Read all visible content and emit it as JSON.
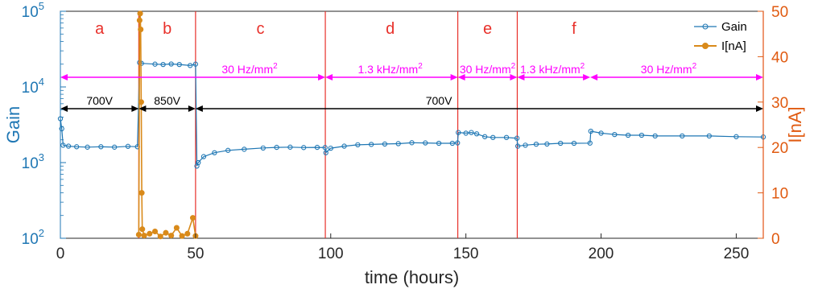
{
  "colors": {
    "gain": "#1f77b4",
    "current": "#d98a1a",
    "right_axis": "#e05a10",
    "region_line": "#e8302a",
    "region_label": "#e8302a",
    "rate_arrow": "#ff00ff",
    "voltage_arrow": "#000000"
  },
  "chart_data": {
    "type": "line",
    "xlabel": "time (hours)",
    "ylabel_left": "Gain",
    "ylabel_right": "I[nA]",
    "xlim": [
      0,
      260
    ],
    "ylim_left": [
      100,
      100000
    ],
    "ylim_right": [
      0,
      50
    ],
    "y_left_scale": "log",
    "x_ticks": [
      "0",
      "50",
      "100",
      "150",
      "200",
      "250"
    ],
    "x_tick_values": [
      0,
      50,
      100,
      150,
      200,
      250
    ],
    "y_left_ticks": [
      {
        "base": "10",
        "exp": "2",
        "value": 100
      },
      {
        "base": "10",
        "exp": "3",
        "value": 1000
      },
      {
        "base": "10",
        "exp": "4",
        "value": 10000
      },
      {
        "base": "10",
        "exp": "5",
        "value": 100000
      }
    ],
    "y_right_ticks": [
      "0",
      "10",
      "20",
      "30",
      "40",
      "50"
    ],
    "y_right_tick_values": [
      0,
      10,
      20,
      30,
      40,
      50
    ],
    "legend_position": "top-right",
    "grid": false,
    "region_boundaries": [
      29,
      50,
      98,
      147,
      169,
      260
    ],
    "regions": [
      {
        "label": "a",
        "x": 14.5
      },
      {
        "label": "b",
        "x": 39.5
      },
      {
        "label": "c",
        "x": 74
      },
      {
        "label": "d",
        "x": 122
      },
      {
        "label": "e",
        "x": 158
      },
      {
        "label": "f",
        "x": 190
      }
    ],
    "rate_annotations": [
      {
        "label": "30 Hz/mm",
        "sup": "2",
        "x1": 0,
        "x2": 98,
        "label_x": 70
      },
      {
        "label": "1.3 kHz/mm",
        "sup": "2",
        "x1": 98,
        "x2": 147,
        "label_x": 122
      },
      {
        "label": "30 Hz/mm",
        "sup": "2",
        "x1": 147,
        "x2": 169,
        "label_x": 158
      },
      {
        "label": "1.3 kHz/mm",
        "sup": "2",
        "x1": 169,
        "x2": 196,
        "label_x": 182
      },
      {
        "label": "30 Hz/mm",
        "sup": "2",
        "x1": 196,
        "x2": 260,
        "label_x": 225
      }
    ],
    "voltage_annotations": [
      {
        "label": "700V",
        "x1": 0,
        "x2": 29,
        "label_x": 14.5
      },
      {
        "label": "850V",
        "x1": 29,
        "x2": 50,
        "label_x": 39.5
      },
      {
        "label": "700V",
        "x1": 50,
        "x2": 260,
        "label_x": 140
      }
    ],
    "series": [
      {
        "name": "Gain",
        "axis": "left",
        "marker": "open-circle",
        "points": [
          [
            0.0,
            3800
          ],
          [
            0.5,
            2800
          ],
          [
            1.0,
            1700
          ],
          [
            3,
            1650
          ],
          [
            6,
            1620
          ],
          [
            10,
            1600
          ],
          [
            15,
            1620
          ],
          [
            20,
            1600
          ],
          [
            25,
            1640
          ],
          [
            28.5,
            1620
          ],
          [
            29.3,
            21000
          ],
          [
            30,
            20500
          ],
          [
            35,
            20000
          ],
          [
            38,
            19800
          ],
          [
            41,
            20100
          ],
          [
            44,
            19800
          ],
          [
            48,
            19200
          ],
          [
            50,
            20000
          ],
          [
            50.5,
            900
          ],
          [
            51,
            1000
          ],
          [
            53,
            1200
          ],
          [
            57,
            1350
          ],
          [
            62,
            1450
          ],
          [
            68,
            1500
          ],
          [
            75,
            1560
          ],
          [
            80,
            1590
          ],
          [
            85,
            1600
          ],
          [
            90,
            1580
          ],
          [
            95,
            1590
          ],
          [
            97.9,
            1580
          ],
          [
            98.2,
            1350
          ],
          [
            100,
            1550
          ],
          [
            105,
            1650
          ],
          [
            110,
            1720
          ],
          [
            115,
            1740
          ],
          [
            120,
            1760
          ],
          [
            125,
            1780
          ],
          [
            130,
            1830
          ],
          [
            135,
            1820
          ],
          [
            140,
            1800
          ],
          [
            145,
            1800
          ],
          [
            146.9,
            1820
          ],
          [
            147.2,
            2500
          ],
          [
            150,
            2450
          ],
          [
            152,
            2500
          ],
          [
            154,
            2400
          ],
          [
            157,
            2200
          ],
          [
            160,
            2150
          ],
          [
            165,
            2150
          ],
          [
            168.9,
            2100
          ],
          [
            169.2,
            1650
          ],
          [
            172,
            1700
          ],
          [
            176,
            1750
          ],
          [
            180,
            1760
          ],
          [
            185,
            1800
          ],
          [
            190,
            1800
          ],
          [
            195.9,
            1810
          ],
          [
            196.2,
            2600
          ],
          [
            200,
            2450
          ],
          [
            205,
            2350
          ],
          [
            210,
            2300
          ],
          [
            215,
            2300
          ],
          [
            220,
            2250
          ],
          [
            230,
            2250
          ],
          [
            240,
            2250
          ],
          [
            250,
            2200
          ],
          [
            260,
            2180
          ]
        ]
      },
      {
        "name": "I[nA]",
        "axis": "right",
        "marker": "filled-circle",
        "points": [
          [
            29.0,
            0.8
          ],
          [
            29.3,
            48
          ],
          [
            29.5,
            49.5
          ],
          [
            29.7,
            46
          ],
          [
            29.9,
            30
          ],
          [
            30.1,
            10
          ],
          [
            30.3,
            2
          ],
          [
            31,
            0.6
          ],
          [
            33,
            1.0
          ],
          [
            35,
            1.5
          ],
          [
            37,
            0.4
          ],
          [
            39,
            1.2
          ],
          [
            41,
            0.6
          ],
          [
            43,
            2.3
          ],
          [
            45,
            0.5
          ],
          [
            47,
            1.0
          ],
          [
            49,
            4.5
          ],
          [
            50,
            0.5
          ]
        ]
      }
    ]
  }
}
